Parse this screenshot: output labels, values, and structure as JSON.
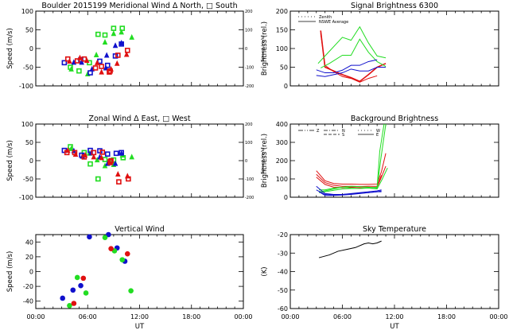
{
  "colors": {
    "red": "#e01010",
    "green": "#22dd22",
    "blue": "#1010cc",
    "black": "#000000"
  },
  "x_ticks": [
    "00:00",
    "06:00",
    "12:00",
    "18:00",
    "00:00"
  ],
  "xlabel": "UT",
  "chart_data": [
    {
      "id": "meridional",
      "type": "scatter",
      "title": "Boulder   2015199     Meridional Wind   Δ North, □ South",
      "xlabel": "",
      "ylabel": "Speed (m/s)",
      "y2label": "Speed (m/s)",
      "xlim": [
        0,
        24
      ],
      "ylim": [
        -100,
        100
      ],
      "yticks": [
        "100",
        "50",
        "0",
        "-50",
        "-100"
      ],
      "y2ticks": [
        "200",
        "100",
        "0",
        "-100",
        "-200"
      ],
      "series": [
        {
          "name": "green",
          "color": "green",
          "points": [
            [
              4.0,
              -50
            ],
            [
              4.1,
              -55
            ],
            [
              5.0,
              -60
            ],
            [
              6.0,
              -68
            ],
            [
              6.2,
              -38
            ],
            [
              7.0,
              -17
            ],
            [
              7.2,
              38
            ],
            [
              8.0,
              17
            ],
            [
              8.0,
              36
            ],
            [
              9.0,
              40
            ],
            [
              9.0,
              54
            ],
            [
              9.9,
              44
            ],
            [
              10.0,
              54
            ],
            [
              11.1,
              30
            ]
          ]
        },
        {
          "name": "blue",
          "color": "blue",
          "points": [
            [
              3.3,
              -38
            ],
            [
              4.4,
              -37
            ],
            [
              5.2,
              -30
            ],
            [
              5.3,
              -37
            ],
            [
              6.3,
              -65
            ],
            [
              6.5,
              -55
            ],
            [
              7.4,
              -34
            ],
            [
              8.1,
              -52
            ],
            [
              8.3,
              -45
            ],
            [
              8.2,
              -18
            ],
            [
              9.2,
              -20
            ],
            [
              9.2,
              8
            ],
            [
              9.9,
              12
            ],
            [
              9.9,
              15
            ]
          ]
        },
        {
          "name": "red",
          "color": "red",
          "points": [
            [
              3.7,
              -28
            ],
            [
              3.9,
              -34
            ],
            [
              4.8,
              -33
            ],
            [
              5.1,
              -25
            ],
            [
              5.6,
              -28
            ],
            [
              5.9,
              -32
            ],
            [
              6.9,
              -52
            ],
            [
              7.1,
              -38
            ],
            [
              7.6,
              -48
            ],
            [
              7.6,
              -63
            ],
            [
              8.5,
              -63
            ],
            [
              8.7,
              -55
            ],
            [
              8.6,
              -60
            ],
            [
              9.4,
              -40
            ],
            [
              9.5,
              -18
            ],
            [
              10.5,
              -16
            ],
            [
              10.6,
              -5
            ]
          ]
        }
      ]
    },
    {
      "id": "signal",
      "type": "line",
      "title": "Signal Brightness       6300",
      "xlabel": "",
      "ylabel": "Brightness (rel.)",
      "xlim": [
        0,
        24
      ],
      "ylim": [
        0,
        200
      ],
      "yticks": [
        "200",
        "150",
        "100",
        "50",
        "0"
      ],
      "legend": {
        "position": "top-left",
        "entries": [
          {
            "label": "Zenith",
            "style": "dotted"
          },
          {
            "label": "NSWE Average",
            "style": "solid"
          }
        ]
      },
      "series": [
        {
          "name": "red-1",
          "color": "red",
          "x": [
            3.5,
            4.0,
            5.0,
            6.0,
            7.0,
            8.0,
            9.0,
            10.0,
            11.0
          ],
          "y": [
            148,
            50,
            40,
            30,
            22,
            12,
            30,
            50,
            60
          ]
        },
        {
          "name": "red-2",
          "color": "red",
          "x": [
            3.5,
            4.0,
            5.0,
            6.0,
            7.0,
            8.0,
            9.0,
            10.0
          ],
          "y": [
            140,
            55,
            38,
            25,
            20,
            10,
            20,
            27
          ]
        },
        {
          "name": "green-1",
          "color": "green",
          "x": [
            3.2,
            4.0,
            6.0,
            6.0,
            7.0,
            8.0,
            9.0,
            10.0,
            11.0
          ],
          "y": [
            60,
            80,
            130,
            130,
            122,
            158,
            115,
            80,
            75
          ]
        },
        {
          "name": "green-2",
          "color": "green",
          "x": [
            3.5,
            4.5,
            6.0,
            7.0,
            8.0,
            9.0,
            10.0,
            11.0
          ],
          "y": [
            48,
            60,
            82,
            82,
            125,
            90,
            65,
            52
          ]
        },
        {
          "name": "blue-1",
          "color": "blue",
          "x": [
            3.0,
            4.0,
            5.0,
            6.0,
            7.0,
            8.0,
            9.0,
            10.0
          ],
          "y": [
            43,
            35,
            35,
            42,
            55,
            55,
            65,
            70
          ]
        },
        {
          "name": "blue-2",
          "color": "blue",
          "x": [
            3.0,
            4.0,
            5.0,
            6.0,
            7.0,
            8.0,
            9.0,
            10.0,
            11.0
          ],
          "y": [
            28,
            25,
            30,
            35,
            45,
            40,
            40,
            50,
            50
          ]
        }
      ]
    },
    {
      "id": "zonal",
      "type": "scatter",
      "title": "Zonal Wind      Δ East, □ West",
      "xlabel": "",
      "ylabel": "Speed (m/s)",
      "y2label": "Speed (m/s)",
      "xlim": [
        0,
        24
      ],
      "ylim": [
        -100,
        100
      ],
      "yticks": [
        "100",
        "50",
        "0",
        "-50",
        "-100"
      ],
      "y2ticks": [
        "200",
        "100",
        "0",
        "-100",
        "-200"
      ],
      "series": [
        {
          "name": "green",
          "color": "green",
          "points": [
            [
              4.0,
              38
            ],
            [
              4.1,
              33
            ],
            [
              5.6,
              22
            ],
            [
              6.2,
              20
            ],
            [
              6.3,
              -9
            ],
            [
              7.1,
              2
            ],
            [
              7.2,
              -50
            ],
            [
              8.0,
              -14
            ],
            [
              8.0,
              3
            ],
            [
              9.0,
              -11
            ],
            [
              9.0,
              2
            ],
            [
              10.0,
              15
            ],
            [
              10.1,
              8
            ],
            [
              11.1,
              10
            ]
          ]
        },
        {
          "name": "blue",
          "color": "blue",
          "points": [
            [
              3.3,
              28
            ],
            [
              4.4,
              27
            ],
            [
              5.3,
              15
            ],
            [
              5.4,
              12
            ],
            [
              6.3,
              28
            ],
            [
              6.4,
              21
            ],
            [
              7.4,
              27
            ],
            [
              7.4,
              10
            ],
            [
              8.3,
              18
            ],
            [
              8.3,
              -8
            ],
            [
              9.3,
              20
            ],
            [
              9.2,
              -8
            ],
            [
              9.9,
              22
            ],
            [
              9.9,
              20
            ]
          ]
        },
        {
          "name": "red",
          "color": "red",
          "points": [
            [
              3.6,
              22
            ],
            [
              3.7,
              28
            ],
            [
              4.5,
              22
            ],
            [
              4.6,
              17
            ],
            [
              5.6,
              10
            ],
            [
              5.7,
              15
            ],
            [
              6.7,
              22
            ],
            [
              6.7,
              10
            ],
            [
              7.7,
              23
            ],
            [
              7.6,
              8
            ],
            [
              8.6,
              -3
            ],
            [
              8.6,
              -6
            ],
            [
              8.7,
              0
            ],
            [
              9.5,
              -37
            ],
            [
              9.6,
              -58
            ],
            [
              10.6,
              -42
            ],
            [
              10.7,
              -50
            ]
          ]
        }
      ]
    },
    {
      "id": "background",
      "type": "line",
      "title": "Background Brightness",
      "xlabel": "",
      "ylabel": "Brightness (rel.)",
      "xlim": [
        0,
        24
      ],
      "ylim": [
        0,
        400
      ],
      "yticks": [
        "400",
        "300",
        "200",
        "100",
        "0"
      ],
      "legend": {
        "position": "top-left",
        "entries": [
          {
            "label": "Z",
            "style": "dash-dot-dot"
          },
          {
            "label": "N",
            "style": "dash-dot"
          },
          {
            "label": "S",
            "style": "dashed"
          },
          {
            "label": "W",
            "style": "dotted"
          },
          {
            "label": "E",
            "style": "solid"
          }
        ]
      },
      "series": [
        {
          "name": "red-1",
          "color": "red",
          "x": [
            3.0,
            4.0,
            5.0,
            6.0,
            7.0,
            8.0,
            9.0,
            10.0,
            10.5,
            11.0
          ],
          "y": [
            145,
            90,
            75,
            72,
            72,
            70,
            70,
            72,
            140,
            240
          ]
        },
        {
          "name": "red-2",
          "color": "red",
          "x": [
            3.0,
            4.0,
            5.0,
            6.0,
            7.0,
            8.0,
            9.0,
            10.0,
            10.5
          ],
          "y": [
            125,
            80,
            65,
            60,
            60,
            58,
            60,
            60,
            120
          ]
        },
        {
          "name": "red-3",
          "color": "red",
          "x": [
            3.0,
            4.0,
            5.0,
            6.0,
            7.0,
            8.0,
            9.0,
            10.0,
            10.5,
            11.0
          ],
          "y": [
            110,
            70,
            55,
            52,
            55,
            52,
            50,
            55,
            110,
            170
          ]
        },
        {
          "name": "green-1",
          "color": "green",
          "x": [
            3.3,
            4.0,
            5.0,
            6.0,
            7.0,
            8.0,
            9.0,
            10.0,
            10.3,
            10.8
          ],
          "y": [
            40,
            40,
            50,
            55,
            50,
            48,
            52,
            55,
            250,
            420
          ]
        },
        {
          "name": "green-2",
          "color": "green",
          "x": [
            3.3,
            4.0,
            5.0,
            6.0,
            7.0,
            8.0,
            9.0,
            10.0,
            10.4,
            11.0
          ],
          "y": [
            30,
            35,
            45,
            55,
            60,
            58,
            55,
            50,
            200,
            420
          ]
        },
        {
          "name": "green-3",
          "color": "green",
          "x": [
            3.3,
            4.0,
            5.0,
            6.0,
            7.0,
            8.0,
            9.0,
            10.0,
            10.6,
            11.2
          ],
          "y": [
            25,
            30,
            38,
            45,
            48,
            48,
            50,
            45,
            100,
            160
          ]
        },
        {
          "name": "blue-1",
          "color": "blue",
          "x": [
            3.0,
            4.0,
            5.0,
            6.0,
            7.0,
            8.0,
            9.0,
            10.0,
            10.5
          ],
          "y": [
            60,
            20,
            15,
            15,
            18,
            22,
            25,
            30,
            35
          ]
        },
        {
          "name": "blue-2",
          "color": "blue",
          "x": [
            3.0,
            4.0,
            5.0,
            6.0,
            7.0,
            8.0,
            9.0,
            10.0,
            10.5
          ],
          "y": [
            40,
            15,
            12,
            15,
            20,
            25,
            30,
            35,
            40
          ]
        },
        {
          "name": "blue-3",
          "color": "blue",
          "x": [
            3.3,
            4.0,
            5.0,
            6.0,
            7.0,
            8.0,
            9.0,
            10.0,
            10.5
          ],
          "y": [
            30,
            10,
            10,
            12,
            15,
            20,
            25,
            30,
            30
          ]
        }
      ]
    },
    {
      "id": "vertical",
      "type": "scatter",
      "title": "Vertical Wind",
      "xlabel": "UT",
      "ylabel": "Speed (m/s)",
      "xlim": [
        0,
        24
      ],
      "ylim": [
        -50,
        50
      ],
      "yticks": [
        "40",
        "20",
        "0",
        "-20",
        "-40"
      ],
      "ytick_values": [
        40,
        20,
        0,
        -20,
        -40
      ],
      "series": [
        {
          "name": "blue",
          "color": "blue",
          "points": [
            [
              3.1,
              -36
            ],
            [
              4.3,
              -25
            ],
            [
              5.2,
              -19
            ],
            [
              6.2,
              47
            ],
            [
              8.4,
              50
            ],
            [
              9.4,
              32
            ],
            [
              10.3,
              14
            ]
          ]
        },
        {
          "name": "green",
          "color": "green",
          "points": [
            [
              3.9,
              -46
            ],
            [
              4.8,
              -8
            ],
            [
              5.8,
              -29
            ],
            [
              8.0,
              46
            ],
            [
              9.1,
              28
            ],
            [
              10.0,
              16
            ],
            [
              11.0,
              -26
            ]
          ]
        },
        {
          "name": "red",
          "color": "red",
          "points": [
            [
              4.4,
              -43
            ],
            [
              5.5,
              -9
            ],
            [
              8.7,
              31
            ],
            [
              10.6,
              24
            ]
          ]
        }
      ]
    },
    {
      "id": "skytemp",
      "type": "line",
      "title": "Sky Temperature",
      "xlabel": "UT",
      "ylabel": "(K)",
      "xlim": [
        0,
        24
      ],
      "ylim": [
        -60,
        -20
      ],
      "yticks": [
        "-20",
        "-30",
        "-40",
        "-50",
        "-60"
      ],
      "ytick_values": [
        -20,
        -30,
        -40,
        -50,
        -60
      ],
      "series": [
        {
          "name": "sky-temp",
          "color": "black",
          "x": [
            3.3,
            4.5,
            5.5,
            6.5,
            7.5,
            8.5,
            9.0,
            9.5,
            10.0,
            10.5
          ],
          "y": [
            -32.5,
            -31,
            -29,
            -28,
            -27,
            -25,
            -24.5,
            -25,
            -24.5,
            -23.5
          ]
        }
      ]
    }
  ]
}
